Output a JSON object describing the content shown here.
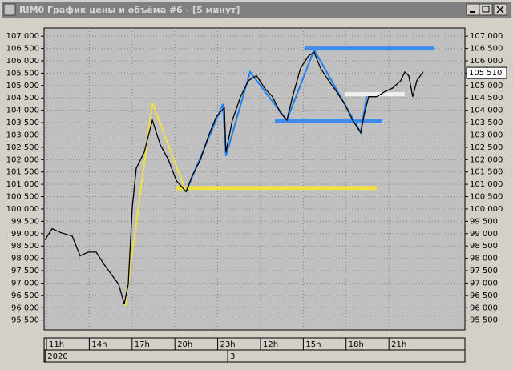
{
  "window_title": "RIM0 График цены и объёма #6 - [5 минут]",
  "chart_data": {
    "type": "line",
    "color": "#000000",
    "grid": true,
    "x": [
      -0.1,
      0.39,
      0.96,
      1.8,
      2.36,
      2.92,
      3.48,
      4.04,
      4.61,
      5.06,
      5.45,
      5.73,
      6.01,
      6.29,
      6.85,
      7.42,
      7.98,
      8.54,
      9.1,
      9.78,
      10.22,
      10.79,
      11.35,
      11.91,
      12.47,
      12.58,
      13.03,
      13.6,
      14.16,
      14.72,
      15.28,
      15.84,
      16.4,
      16.85,
      17.25,
      17.81,
      18.37,
      18.76,
      19.21,
      19.78,
      20.34,
      20.9,
      21.46,
      22.02,
      22.3,
      22.58,
      23.15,
      23.71,
      24.27,
      24.83,
      25.11,
      25.39,
      25.67,
      25.96,
      26.4
    ],
    "values": [
      98750,
      99200,
      99050,
      98900,
      98100,
      98250,
      98250,
      97750,
      97300,
      96950,
      96150,
      96950,
      100050,
      101650,
      102300,
      103600,
      102600,
      102000,
      101150,
      100700,
      101350,
      102000,
      102950,
      103750,
      104100,
      102300,
      103600,
      104550,
      105200,
      105400,
      104900,
      104550,
      103900,
      103600,
      104550,
      105700,
      106200,
      106350,
      105700,
      105200,
      104750,
      104250,
      103600,
      103100,
      103900,
      104550,
      104550,
      104750,
      104900,
      105200,
      105550,
      105400,
      104550,
      105200,
      105550
    ],
    "xlim": [
      -0.17,
      29.33
    ],
    "xticks": [
      {
        "value": 0,
        "label": "11h"
      },
      {
        "value": 3,
        "label": "14h"
      },
      {
        "value": 6,
        "label": "17h"
      },
      {
        "value": 9,
        "label": "20h"
      },
      {
        "value": 12,
        "label": "23h"
      },
      {
        "value": 15,
        "label": "12h"
      },
      {
        "value": 18,
        "label": "15h"
      },
      {
        "value": 21,
        "label": "18h"
      },
      {
        "value": 24,
        "label": "21h"
      }
    ],
    "date_labels": [
      {
        "value": -0.1,
        "label": "2020"
      },
      {
        "value": 12.7,
        "label": "3"
      }
    ],
    "ylim": [
      95100,
      107330
    ],
    "yticks": [
      {
        "value": 107000,
        "label": "107 000"
      },
      {
        "value": 106500,
        "label": "106 500"
      },
      {
        "value": 106000,
        "label": "106 000"
      },
      {
        "value": 105500,
        "label": "105 500"
      },
      {
        "value": 105000,
        "label": "105 000"
      },
      {
        "value": 104500,
        "label": "104 500"
      },
      {
        "value": 104000,
        "label": "104 000"
      },
      {
        "value": 103500,
        "label": "103 500"
      },
      {
        "value": 103000,
        "label": "103 000"
      },
      {
        "value": 102500,
        "label": "102 500"
      },
      {
        "value": 102000,
        "label": "102 000"
      },
      {
        "value": 101500,
        "label": "101 500"
      },
      {
        "value": 101000,
        "label": "101 000"
      },
      {
        "value": 100500,
        "label": "100 500"
      },
      {
        "value": 100000,
        "label": "100 000"
      },
      {
        "value": 99500,
        "label": "99 500"
      },
      {
        "value": 99000,
        "label": "99 000"
      },
      {
        "value": 98500,
        "label": "98 500"
      },
      {
        "value": 98000,
        "label": "98 000"
      },
      {
        "value": 97500,
        "label": "97 500"
      },
      {
        "value": 97000,
        "label": "97 000"
      },
      {
        "value": 96500,
        "label": "96 500"
      },
      {
        "value": 96000,
        "label": "96 000"
      },
      {
        "value": 95500,
        "label": "95 500"
      }
    ],
    "last_price": {
      "value": 105510,
      "label": "105 510"
    },
    "drawings": [
      {
        "color": "#f0e040",
        "width": 2,
        "x": [
          5.51,
          7.42,
          9.78
        ],
        "values": [
          96050,
          104300,
          100700
        ]
      },
      {
        "color": "#f0e040",
        "width": 5,
        "x": [
          9.1,
          23.15
        ],
        "values": [
          100850,
          100850
        ]
      },
      {
        "color": "#2080f0",
        "width": 2,
        "x": [
          9.78,
          12.36,
          12.58,
          14.27,
          16.85,
          18.76,
          22.02,
          22.47
        ],
        "values": [
          100700,
          104250,
          102150,
          105550,
          103600,
          106450,
          103100,
          104650
        ]
      },
      {
        "color": "#3c8cf0",
        "width": 5,
        "x": [
          18.09,
          27.19
        ],
        "values": [
          106500,
          106500
        ]
      },
      {
        "color": "#3c8cf0",
        "width": 5,
        "x": [
          16.01,
          23.54
        ],
        "values": [
          103550,
          103550
        ]
      },
      {
        "color": "#f0f0f0",
        "width": 5,
        "x": [
          20.9,
          25.11
        ],
        "values": [
          104650,
          104650
        ]
      }
    ]
  }
}
